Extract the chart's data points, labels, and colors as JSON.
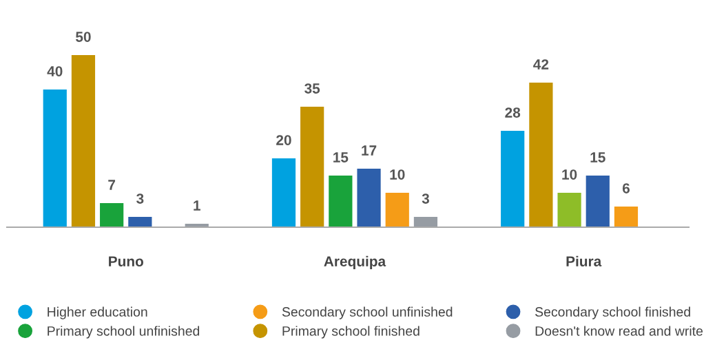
{
  "chart_data": {
    "type": "bar",
    "categories": [
      "Puno",
      "Arequipa",
      "Piura"
    ],
    "series": [
      {
        "name": "Higher education",
        "color": "#00a2e0",
        "values": [
          40,
          20,
          28
        ]
      },
      {
        "name": "Primary school finished",
        "color": "#c59400",
        "values": [
          50,
          35,
          42
        ]
      },
      {
        "name": "Primary school unfinished",
        "color": "#19a33b",
        "colors": [
          "#19a33b",
          "#19a33b",
          "#8ebd28"
        ],
        "values": [
          7,
          15,
          10
        ]
      },
      {
        "name": "Secondary school finished",
        "color": "#2d5fab",
        "values": [
          3,
          17,
          15
        ]
      },
      {
        "name": "Secondary school unfinished",
        "color": "#f59c17",
        "values": [
          null,
          10,
          6
        ]
      },
      {
        "name": "Doesn't know read and write",
        "color": "#969ca3",
        "values": [
          1,
          3,
          null
        ]
      }
    ],
    "data_labels": true,
    "legend": "bottom",
    "grid": false,
    "tick_labels": "x"
  }
}
